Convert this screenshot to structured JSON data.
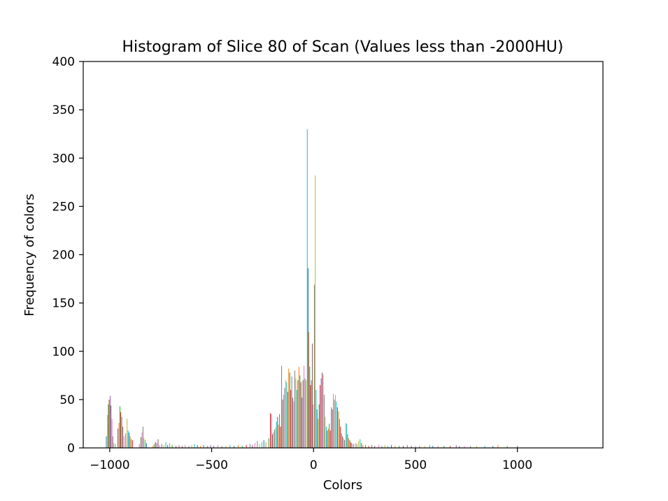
{
  "chart_data": {
    "type": "histogram",
    "title": "Histogram of Slice 80 of Scan (Values less than -2000HU)",
    "xlabel": "Colors",
    "ylabel": "Frequency of colors",
    "xlim": [
      -1130,
      1420
    ],
    "ylim": [
      0,
      400
    ],
    "xticks": [
      -1000,
      -500,
      0,
      500,
      1000
    ],
    "xtick_labels": [
      "−1000",
      "−500",
      "0",
      "500",
      "1000"
    ],
    "yticks": [
      0,
      50,
      100,
      150,
      200,
      250,
      300,
      350,
      400
    ],
    "ytick_labels": [
      "0",
      "50",
      "100",
      "150",
      "200",
      "250",
      "300",
      "350",
      "400"
    ],
    "grid": false,
    "legend": "none",
    "palette": [
      "#1f77b4",
      "#ff7f0e",
      "#2ca02c",
      "#d62728",
      "#9467bd",
      "#8c564b",
      "#e377c2",
      "#7f7f7f",
      "#bcbd22",
      "#17becf"
    ],
    "bar_width": 3,
    "bars": [
      {
        "x": -1017,
        "y": 12
      },
      {
        "x": -1011,
        "y": 34
      },
      {
        "x": -1007,
        "y": 45
      },
      {
        "x": -1003,
        "y": 50
      },
      {
        "x": -998,
        "y": 54
      },
      {
        "x": -994,
        "y": 44
      },
      {
        "x": -989,
        "y": 30
      },
      {
        "x": -985,
        "y": 12
      },
      {
        "x": -980,
        "y": 5
      },
      {
        "x": -972,
        "y": 4
      },
      {
        "x": -960,
        "y": 20
      },
      {
        "x": -955,
        "y": 26
      },
      {
        "x": -950,
        "y": 43
      },
      {
        "x": -946,
        "y": 37
      },
      {
        "x": -941,
        "y": 32
      },
      {
        "x": -936,
        "y": 22
      },
      {
        "x": -930,
        "y": 12
      },
      {
        "x": -922,
        "y": 15
      },
      {
        "x": -915,
        "y": 30
      },
      {
        "x": -910,
        "y": 18
      },
      {
        "x": -905,
        "y": 16
      },
      {
        "x": -900,
        "y": 12
      },
      {
        "x": -895,
        "y": 9
      },
      {
        "x": -888,
        "y": 8
      },
      {
        "x": -855,
        "y": 4
      },
      {
        "x": -847,
        "y": 11
      },
      {
        "x": -842,
        "y": 16
      },
      {
        "x": -837,
        "y": 22
      },
      {
        "x": -832,
        "y": 10
      },
      {
        "x": -826,
        "y": 8
      },
      {
        "x": -820,
        "y": 5
      },
      {
        "x": -790,
        "y": 2
      },
      {
        "x": -783,
        "y": 4
      },
      {
        "x": -776,
        "y": 6
      },
      {
        "x": -770,
        "y": 5
      },
      {
        "x": -763,
        "y": 9
      },
      {
        "x": -756,
        "y": 3
      },
      {
        "x": -745,
        "y": 4
      },
      {
        "x": -735,
        "y": 3
      },
      {
        "x": -725,
        "y": 6
      },
      {
        "x": -716,
        "y": 3
      },
      {
        "x": -706,
        "y": 5
      },
      {
        "x": -694,
        "y": 3
      },
      {
        "x": -675,
        "y": 2
      },
      {
        "x": -660,
        "y": 3
      },
      {
        "x": -645,
        "y": 2
      },
      {
        "x": -630,
        "y": 3
      },
      {
        "x": -612,
        "y": 2
      },
      {
        "x": -598,
        "y": 3
      },
      {
        "x": -585,
        "y": 4
      },
      {
        "x": -570,
        "y": 3
      },
      {
        "x": -555,
        "y": 2
      },
      {
        "x": -540,
        "y": 3
      },
      {
        "x": -520,
        "y": 2
      },
      {
        "x": -505,
        "y": 3
      },
      {
        "x": -490,
        "y": 2
      },
      {
        "x": -470,
        "y": 3
      },
      {
        "x": -450,
        "y": 2
      },
      {
        "x": -430,
        "y": 2
      },
      {
        "x": -410,
        "y": 3
      },
      {
        "x": -390,
        "y": 2
      },
      {
        "x": -370,
        "y": 3
      },
      {
        "x": -350,
        "y": 2
      },
      {
        "x": -330,
        "y": 3
      },
      {
        "x": -312,
        "y": 4
      },
      {
        "x": -300,
        "y": 3
      },
      {
        "x": -288,
        "y": 5
      },
      {
        "x": -276,
        "y": 7
      },
      {
        "x": -265,
        "y": 4
      },
      {
        "x": -254,
        "y": 6
      },
      {
        "x": -244,
        "y": 8
      },
      {
        "x": -234,
        "y": 6
      },
      {
        "x": -220,
        "y": 10
      },
      {
        "x": -212,
        "y": 36
      },
      {
        "x": -207,
        "y": 35
      },
      {
        "x": -202,
        "y": 14
      },
      {
        "x": -197,
        "y": 16
      },
      {
        "x": -192,
        "y": 19
      },
      {
        "x": -187,
        "y": 21
      },
      {
        "x": -182,
        "y": 27
      },
      {
        "x": -177,
        "y": 32
      },
      {
        "x": -172,
        "y": 24
      },
      {
        "x": -167,
        "y": 35
      },
      {
        "x": -162,
        "y": 22
      },
      {
        "x": -157,
        "y": 85
      },
      {
        "x": -152,
        "y": 50
      },
      {
        "x": -147,
        "y": 55
      },
      {
        "x": -142,
        "y": 62
      },
      {
        "x": -137,
        "y": 70
      },
      {
        "x": -132,
        "y": 68
      },
      {
        "x": -127,
        "y": 58
      },
      {
        "x": -122,
        "y": 82
      },
      {
        "x": -117,
        "y": 78
      },
      {
        "x": -112,
        "y": 60
      },
      {
        "x": -107,
        "y": 74
      },
      {
        "x": -102,
        "y": 52
      },
      {
        "x": -97,
        "y": 48
      },
      {
        "x": -92,
        "y": 80
      },
      {
        "x": -87,
        "y": 72
      },
      {
        "x": -82,
        "y": 60
      },
      {
        "x": -77,
        "y": 70
      },
      {
        "x": -72,
        "y": 84
      },
      {
        "x": -67,
        "y": 75
      },
      {
        "x": -62,
        "y": 68
      },
      {
        "x": -57,
        "y": 52
      },
      {
        "x": -52,
        "y": 70
      },
      {
        "x": -47,
        "y": 85
      },
      {
        "x": -42,
        "y": 72
      },
      {
        "x": -37,
        "y": 70
      },
      {
        "x": -31,
        "y": 330
      },
      {
        "x": -27,
        "y": 186
      },
      {
        "x": -23,
        "y": 120
      },
      {
        "x": -19,
        "y": 84
      },
      {
        "x": -15,
        "y": 65
      },
      {
        "x": -11,
        "y": 70
      },
      {
        "x": -6,
        "y": 108
      },
      {
        "x": -2,
        "y": 45
      },
      {
        "x": 4,
        "y": 169
      },
      {
        "x": 8,
        "y": 282
      },
      {
        "x": 12,
        "y": 60
      },
      {
        "x": 17,
        "y": 40
      },
      {
        "x": 22,
        "y": 30
      },
      {
        "x": 27,
        "y": 45
      },
      {
        "x": 32,
        "y": 65
      },
      {
        "x": 37,
        "y": 72
      },
      {
        "x": 42,
        "y": 78
      },
      {
        "x": 47,
        "y": 76
      },
      {
        "x": 52,
        "y": 55
      },
      {
        "x": 57,
        "y": 32
      },
      {
        "x": 62,
        "y": 22
      },
      {
        "x": 67,
        "y": 18
      },
      {
        "x": 72,
        "y": 20
      },
      {
        "x": 77,
        "y": 25
      },
      {
        "x": 82,
        "y": 18
      },
      {
        "x": 87,
        "y": 42
      },
      {
        "x": 92,
        "y": 40
      },
      {
        "x": 97,
        "y": 56
      },
      {
        "x": 102,
        "y": 50
      },
      {
        "x": 107,
        "y": 55
      },
      {
        "x": 112,
        "y": 48
      },
      {
        "x": 117,
        "y": 42
      },
      {
        "x": 122,
        "y": 38
      },
      {
        "x": 127,
        "y": 30
      },
      {
        "x": 132,
        "y": 22
      },
      {
        "x": 137,
        "y": 15
      },
      {
        "x": 142,
        "y": 12
      },
      {
        "x": 147,
        "y": 10
      },
      {
        "x": 152,
        "y": 8
      },
      {
        "x": 157,
        "y": 26
      },
      {
        "x": 162,
        "y": 25
      },
      {
        "x": 167,
        "y": 14
      },
      {
        "x": 172,
        "y": 10
      },
      {
        "x": 177,
        "y": 8
      },
      {
        "x": 182,
        "y": 6
      },
      {
        "x": 187,
        "y": 5
      },
      {
        "x": 195,
        "y": 4
      },
      {
        "x": 205,
        "y": 5
      },
      {
        "x": 212,
        "y": 4
      },
      {
        "x": 220,
        "y": 7
      },
      {
        "x": 228,
        "y": 9
      },
      {
        "x": 235,
        "y": 5
      },
      {
        "x": 242,
        "y": 3
      },
      {
        "x": 255,
        "y": 3
      },
      {
        "x": 270,
        "y": 2
      },
      {
        "x": 285,
        "y": 3
      },
      {
        "x": 300,
        "y": 2
      },
      {
        "x": 320,
        "y": 3
      },
      {
        "x": 335,
        "y": 2
      },
      {
        "x": 350,
        "y": 3
      },
      {
        "x": 365,
        "y": 2
      },
      {
        "x": 382,
        "y": 3
      },
      {
        "x": 400,
        "y": 2
      },
      {
        "x": 420,
        "y": 2
      },
      {
        "x": 440,
        "y": 2
      },
      {
        "x": 460,
        "y": 3
      },
      {
        "x": 480,
        "y": 2
      },
      {
        "x": 500,
        "y": 2
      },
      {
        "x": 520,
        "y": 2
      },
      {
        "x": 545,
        "y": 2
      },
      {
        "x": 570,
        "y": 3
      },
      {
        "x": 585,
        "y": 2
      },
      {
        "x": 610,
        "y": 2
      },
      {
        "x": 640,
        "y": 2
      },
      {
        "x": 670,
        "y": 2
      },
      {
        "x": 700,
        "y": 3
      },
      {
        "x": 715,
        "y": 2
      },
      {
        "x": 740,
        "y": 2
      },
      {
        "x": 770,
        "y": 2
      },
      {
        "x": 800,
        "y": 2
      },
      {
        "x": 840,
        "y": 2
      },
      {
        "x": 880,
        "y": 2
      },
      {
        "x": 905,
        "y": 3
      },
      {
        "x": 950,
        "y": 2
      },
      {
        "x": 1000,
        "y": 2
      }
    ]
  }
}
